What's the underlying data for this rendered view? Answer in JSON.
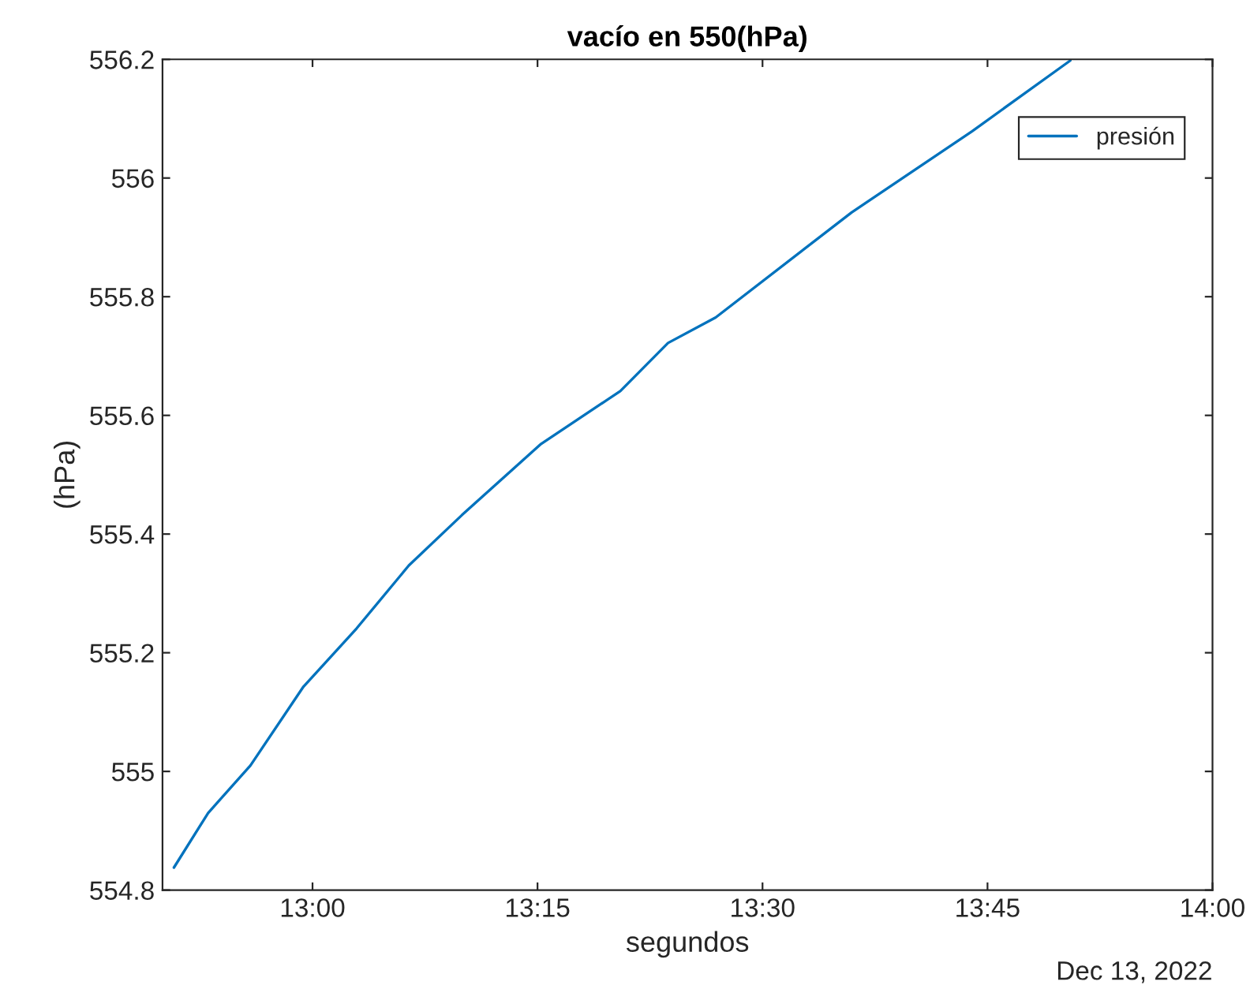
{
  "chart_data": {
    "type": "line",
    "title": "vacío en 550(hPa)",
    "xlabel": "segundos",
    "ylabel": "(hPa)",
    "annotations": [
      "Dec 13, 2022"
    ],
    "x": [
      12.846,
      12.884,
      12.931,
      12.99,
      13.049,
      13.107,
      13.166,
      13.254,
      13.342,
      13.395,
      13.448,
      13.599,
      13.733,
      13.842
    ],
    "series": [
      {
        "name": "presión",
        "color": "#0072bd",
        "values": [
          554.838,
          554.93,
          555.01,
          555.143,
          555.241,
          555.347,
          555.432,
          555.552,
          555.641,
          555.722,
          555.765,
          555.942,
          556.079,
          556.198
        ]
      }
    ],
    "xlim": [
      12.8333,
      14
    ],
    "xticks": [
      {
        "value": 13,
        "label": "13:00"
      },
      {
        "value": 13.25,
        "label": "13:15"
      },
      {
        "value": 13.5,
        "label": "13:30"
      },
      {
        "value": 13.75,
        "label": "13:45"
      },
      {
        "value": 14,
        "label": "14:00"
      }
    ],
    "ylim": [
      554.8,
      556.2
    ],
    "yticks": [
      554.8,
      555,
      555.2,
      555.4,
      555.6,
      555.8,
      556,
      556.2
    ],
    "legend": "top right",
    "grid": false
  }
}
